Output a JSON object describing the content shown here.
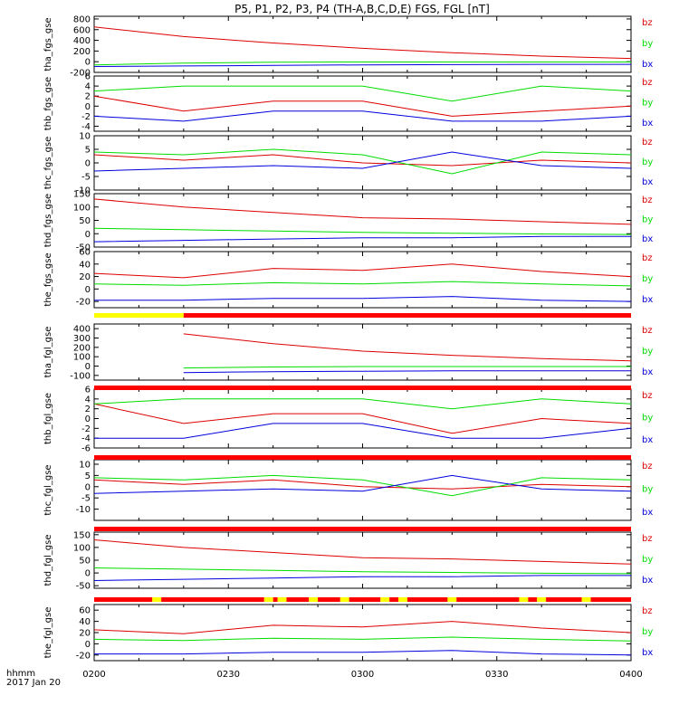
{
  "title": "P5, P1, P2, P3, P4 (TH-A,B,C,D,E) FGS, FGL [nT]",
  "time_axis": {
    "ticks": [
      "0200",
      "0230",
      "0300",
      "0330",
      "0400"
    ],
    "label_line1": "hhmm",
    "label_line2": "2017 Jan 20",
    "range_minutes": [
      0,
      120
    ]
  },
  "legend": {
    "bz": {
      "label": "bz",
      "color": "#dd0000"
    },
    "by": {
      "label": "by",
      "color": "#00dd00"
    },
    "bx": {
      "label": "bx",
      "color": "#0000dd"
    }
  },
  "chart_data": [
    {
      "type": "line",
      "ylabel": "tha_fgs_gse",
      "ylim": [
        -200,
        850
      ],
      "yticks": [
        "800",
        "600",
        "400",
        "200",
        "0",
        "-200"
      ],
      "ytick_values": [
        800,
        600,
        400,
        200,
        0,
        -200
      ],
      "series": [
        {
          "name": "bz",
          "x": [
            0,
            20,
            40,
            60,
            80,
            100,
            120
          ],
          "values": [
            650,
            470,
            350,
            250,
            170,
            105,
            60
          ]
        },
        {
          "name": "by",
          "x": [
            0,
            20,
            40,
            60,
            80,
            100,
            120
          ],
          "values": [
            -60,
            -25,
            -10,
            -5,
            -5,
            -5,
            -5
          ]
        },
        {
          "name": "bx",
          "x": [
            0,
            20,
            40,
            60,
            80,
            100,
            120
          ],
          "values": [
            -90,
            -80,
            -70,
            -60,
            -55,
            -50,
            -50
          ]
        }
      ]
    },
    {
      "type": "line",
      "ylabel": "thb_fgs_gse",
      "ylim": [
        -5,
        6
      ],
      "yticks": [
        "6",
        "4",
        "2",
        "0",
        "-2",
        "-4"
      ],
      "ytick_values": [
        6,
        4,
        2,
        0,
        -2,
        -4
      ],
      "series": [
        {
          "name": "bz",
          "x": [
            0,
            20,
            40,
            60,
            80,
            100,
            120
          ],
          "values": [
            2,
            -1,
            1,
            1,
            -2,
            -1,
            0
          ]
        },
        {
          "name": "by",
          "x": [
            0,
            20,
            40,
            60,
            80,
            100,
            120
          ],
          "values": [
            3,
            4,
            4,
            4,
            1,
            4,
            3
          ]
        },
        {
          "name": "bx",
          "x": [
            0,
            20,
            40,
            60,
            80,
            100,
            120
          ],
          "values": [
            -2,
            -3,
            -1,
            -1,
            -3,
            -3,
            -2
          ]
        }
      ]
    },
    {
      "type": "line",
      "ylabel": "thc_fgs_gse",
      "ylim": [
        -10,
        10
      ],
      "yticks": [
        "10",
        "5",
        "0",
        "-5",
        "-10"
      ],
      "ytick_values": [
        10,
        5,
        0,
        -5,
        -10
      ],
      "series": [
        {
          "name": "bz",
          "x": [
            0,
            20,
            40,
            60,
            80,
            100,
            120
          ],
          "values": [
            3,
            1,
            3,
            0,
            -1,
            1,
            0
          ]
        },
        {
          "name": "by",
          "x": [
            0,
            20,
            40,
            60,
            80,
            100,
            120
          ],
          "values": [
            4,
            3,
            5,
            3,
            -4,
            4,
            3
          ]
        },
        {
          "name": "bx",
          "x": [
            0,
            20,
            40,
            60,
            80,
            100,
            120
          ],
          "values": [
            -3,
            -2,
            -1,
            -2,
            4,
            -1,
            -2
          ]
        }
      ]
    },
    {
      "type": "line",
      "ylabel": "thd_fgs_gse",
      "ylim": [
        -50,
        150
      ],
      "yticks": [
        "150",
        "100",
        "50",
        "0",
        "-50"
      ],
      "ytick_values": [
        150,
        100,
        50,
        0,
        -50
      ],
      "series": [
        {
          "name": "bz",
          "x": [
            0,
            20,
            40,
            60,
            80,
            100,
            120
          ],
          "values": [
            130,
            100,
            80,
            60,
            55,
            45,
            35
          ]
        },
        {
          "name": "by",
          "x": [
            0,
            20,
            40,
            60,
            80,
            100,
            120
          ],
          "values": [
            20,
            15,
            10,
            5,
            2,
            -1,
            -3
          ]
        },
        {
          "name": "bx",
          "x": [
            0,
            20,
            40,
            60,
            80,
            100,
            120
          ],
          "values": [
            -30,
            -25,
            -20,
            -15,
            -15,
            -10,
            -10
          ]
        }
      ]
    },
    {
      "type": "line",
      "ylabel": "the_fgs_gse",
      "ylim": [
        -30,
        60
      ],
      "yticks": [
        "60",
        "40",
        "20",
        "0",
        "-20"
      ],
      "ytick_values": [
        60,
        40,
        20,
        0,
        -20
      ],
      "series": [
        {
          "name": "bz",
          "x": [
            0,
            20,
            40,
            60,
            80,
            100,
            120
          ],
          "values": [
            25,
            18,
            33,
            30,
            40,
            28,
            20
          ]
        },
        {
          "name": "by",
          "x": [
            0,
            20,
            40,
            60,
            80,
            100,
            120
          ],
          "values": [
            8,
            6,
            10,
            8,
            12,
            8,
            5
          ]
        },
        {
          "name": "bx",
          "x": [
            0,
            20,
            40,
            60,
            80,
            100,
            120
          ],
          "values": [
            -18,
            -18,
            -15,
            -15,
            -12,
            -18,
            -20
          ]
        }
      ]
    },
    {
      "type": "line",
      "ylabel": "tha_fgl_gse",
      "ylim": [
        -150,
        450
      ],
      "yticks": [
        "400",
        "300",
        "200",
        "100",
        "0",
        "-100"
      ],
      "ytick_values": [
        400,
        300,
        200,
        100,
        0,
        -100
      ],
      "series": [
        {
          "name": "bz",
          "x": [
            20,
            40,
            60,
            80,
            100,
            120
          ],
          "values": [
            345,
            240,
            160,
            115,
            80,
            55
          ]
        },
        {
          "name": "by",
          "x": [
            20,
            40,
            60,
            80,
            100,
            120
          ],
          "values": [
            -20,
            -10,
            -5,
            -5,
            -5,
            -5
          ]
        },
        {
          "name": "bx",
          "x": [
            20,
            40,
            60,
            80,
            100,
            120
          ],
          "values": [
            -70,
            -60,
            -55,
            -50,
            -50,
            -50
          ]
        }
      ]
    },
    {
      "type": "line",
      "ylabel": "thb_fgl_gse",
      "ylim": [
        -6,
        6
      ],
      "yticks": [
        "6",
        "4",
        "2",
        "0",
        "-2",
        "-4",
        "-6"
      ],
      "ytick_values": [
        6,
        4,
        2,
        0,
        -2,
        -4,
        -6
      ],
      "series": [
        {
          "name": "bz",
          "x": [
            0,
            20,
            40,
            60,
            80,
            100,
            120
          ],
          "values": [
            3,
            -1,
            1,
            1,
            -3,
            0,
            -1
          ]
        },
        {
          "name": "by",
          "x": [
            0,
            20,
            40,
            60,
            80,
            100,
            120
          ],
          "values": [
            3,
            4,
            4,
            4,
            2,
            4,
            3
          ]
        },
        {
          "name": "bx",
          "x": [
            0,
            20,
            40,
            60,
            80,
            100,
            120
          ],
          "values": [
            -4,
            -4,
            -1,
            -1,
            -4,
            -4,
            -2
          ]
        }
      ]
    },
    {
      "type": "line",
      "ylabel": "thc_fgl_gse",
      "ylim": [
        -15,
        12
      ],
      "yticks": [
        "10",
        "5",
        "0",
        "-5",
        "-10"
      ],
      "ytick_values": [
        10,
        5,
        0,
        -5,
        -10
      ],
      "series": [
        {
          "name": "bz",
          "x": [
            0,
            20,
            40,
            60,
            80,
            100,
            120
          ],
          "values": [
            3,
            1,
            3,
            0,
            -1,
            1,
            0
          ]
        },
        {
          "name": "by",
          "x": [
            0,
            20,
            40,
            60,
            80,
            100,
            120
          ],
          "values": [
            4,
            3,
            5,
            3,
            -4,
            4,
            3
          ]
        },
        {
          "name": "bx",
          "x": [
            0,
            20,
            40,
            60,
            80,
            100,
            120
          ],
          "values": [
            -3,
            -2,
            -1,
            -2,
            5,
            -1,
            -2
          ]
        }
      ]
    },
    {
      "type": "line",
      "ylabel": "thd_fgl_gse",
      "ylim": [
        -60,
        160
      ],
      "yticks": [
        "150",
        "100",
        "50",
        "0",
        "-50"
      ],
      "ytick_values": [
        150,
        100,
        50,
        0,
        -50
      ],
      "series": [
        {
          "name": "bz",
          "x": [
            0,
            20,
            40,
            60,
            80,
            100,
            120
          ],
          "values": [
            130,
            100,
            80,
            60,
            55,
            45,
            35
          ]
        },
        {
          "name": "by",
          "x": [
            0,
            20,
            40,
            60,
            80,
            100,
            120
          ],
          "values": [
            20,
            15,
            10,
            5,
            2,
            -1,
            -3
          ]
        },
        {
          "name": "bx",
          "x": [
            0,
            20,
            40,
            60,
            80,
            100,
            120
          ],
          "values": [
            -30,
            -25,
            -20,
            -15,
            -15,
            -10,
            -10
          ]
        }
      ]
    },
    {
      "type": "line",
      "ylabel": "the_fgl_gse",
      "ylim": [
        -30,
        70
      ],
      "yticks": [
        "60",
        "40",
        "20",
        "0",
        "-20"
      ],
      "ytick_values": [
        60,
        40,
        20,
        0,
        -20
      ],
      "series": [
        {
          "name": "bz",
          "x": [
            0,
            20,
            40,
            60,
            80,
            100,
            120
          ],
          "values": [
            25,
            18,
            33,
            30,
            40,
            28,
            20
          ]
        },
        {
          "name": "by",
          "x": [
            0,
            20,
            40,
            60,
            80,
            100,
            120
          ],
          "values": [
            8,
            6,
            10,
            8,
            12,
            8,
            5
          ]
        },
        {
          "name": "bx",
          "x": [
            0,
            20,
            40,
            60,
            80,
            100,
            120
          ],
          "values": [
            -18,
            -18,
            -15,
            -15,
            -12,
            -18,
            -20
          ]
        }
      ]
    }
  ],
  "mode_bars": [
    {
      "after_panel": 4,
      "segments": [
        {
          "start": 0,
          "end": 20,
          "color": "#ffff00"
        },
        {
          "start": 20,
          "end": 120,
          "color": "#ff0000"
        }
      ]
    },
    {
      "after_panel": 5,
      "segments": [
        {
          "start": 0,
          "end": 120,
          "color": "#ff0000"
        }
      ]
    },
    {
      "after_panel": 6,
      "segments": [
        {
          "start": 0,
          "end": 120,
          "color": "#ff0000"
        }
      ]
    },
    {
      "after_panel": 7,
      "segments": [
        {
          "start": 0,
          "end": 120,
          "color": "#ff0000"
        }
      ]
    },
    {
      "after_panel": 8,
      "segments": [
        {
          "start": 0,
          "end": 13,
          "color": "#ff0000"
        },
        {
          "start": 13,
          "end": 15,
          "color": "#ffff00"
        },
        {
          "start": 15,
          "end": 38,
          "color": "#ff0000"
        },
        {
          "start": 38,
          "end": 40,
          "color": "#ffff00"
        },
        {
          "start": 40,
          "end": 41,
          "color": "#ff0000"
        },
        {
          "start": 41,
          "end": 43,
          "color": "#ffff00"
        },
        {
          "start": 43,
          "end": 48,
          "color": "#ff0000"
        },
        {
          "start": 48,
          "end": 50,
          "color": "#ffff00"
        },
        {
          "start": 50,
          "end": 55,
          "color": "#ff0000"
        },
        {
          "start": 55,
          "end": 57,
          "color": "#ffff00"
        },
        {
          "start": 57,
          "end": 64,
          "color": "#ff0000"
        },
        {
          "start": 64,
          "end": 66,
          "color": "#ffff00"
        },
        {
          "start": 66,
          "end": 68,
          "color": "#ff0000"
        },
        {
          "start": 68,
          "end": 70,
          "color": "#ffff00"
        },
        {
          "start": 70,
          "end": 79,
          "color": "#ff0000"
        },
        {
          "start": 79,
          "end": 81,
          "color": "#ffff00"
        },
        {
          "start": 81,
          "end": 95,
          "color": "#ff0000"
        },
        {
          "start": 95,
          "end": 97,
          "color": "#ffff00"
        },
        {
          "start": 97,
          "end": 99,
          "color": "#ff0000"
        },
        {
          "start": 99,
          "end": 101,
          "color": "#ffff00"
        },
        {
          "start": 101,
          "end": 109,
          "color": "#ff0000"
        },
        {
          "start": 109,
          "end": 111,
          "color": "#ffff00"
        },
        {
          "start": 111,
          "end": 120,
          "color": "#ff0000"
        }
      ]
    }
  ]
}
